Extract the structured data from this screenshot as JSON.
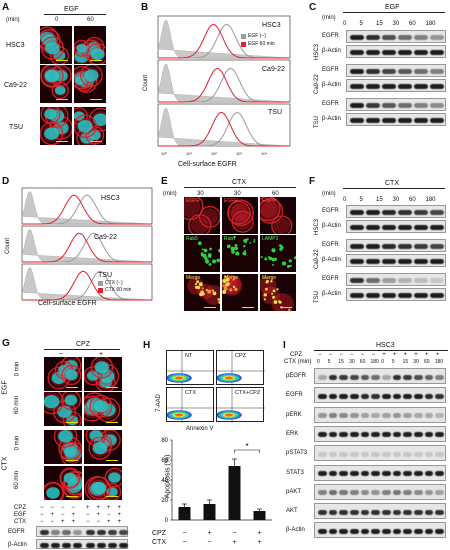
{
  "panel_A": {
    "letter": "A",
    "title": "EGF",
    "unit": "(min)",
    "times": [
      "0",
      "60"
    ],
    "rows": [
      "HSC3",
      "Ca9-22",
      "TSU"
    ]
  },
  "panel_B": {
    "letter": "B",
    "ylabel": "Count",
    "xlabel": "Cell-surface EGFR",
    "rows": [
      "HSC3",
      "Ca9-22",
      "TSU"
    ],
    "legend": [
      "EGF (−)",
      "EGF 60 min"
    ],
    "ticks": [
      "10⁰",
      "10¹",
      "10²",
      "10³",
      "10⁴"
    ]
  },
  "panel_C": {
    "letter": "C",
    "title": "EGF",
    "unit": "(min)",
    "times": [
      "0",
      "5",
      "15",
      "30",
      "60",
      "180"
    ],
    "groups": [
      "HSC3",
      "Ca9-22",
      "TSU"
    ],
    "bands": [
      "EGFR",
      "β-Actin"
    ]
  },
  "panel_D": {
    "letter": "D",
    "ylabel": "Count",
    "xlabel": "Cell-surface EGFR",
    "rows": [
      "HSC3",
      "Ca9-22",
      "TSU"
    ],
    "legend": [
      "CTX (−)",
      "CTX 60 min"
    ]
  },
  "panel_E": {
    "letter": "E",
    "title": "CTX",
    "unit": "(min)",
    "times": [
      "30",
      "30",
      "60"
    ],
    "row1": [
      "EGFR",
      "EGFR",
      "EGFR"
    ],
    "row2": [
      "Rab5",
      "Rab7",
      "LAMP1"
    ],
    "row3": [
      "Merge",
      "Merge",
      "Merge"
    ]
  },
  "panel_F": {
    "letter": "F",
    "title": "CTX",
    "unit": "(min)",
    "times": [
      "0",
      "5",
      "15",
      "30",
      "60",
      "180"
    ],
    "groups": [
      "HSC3",
      "Ca9-22",
      "TSU"
    ],
    "bands": [
      "EGFR",
      "β-Actin"
    ]
  },
  "panel_G": {
    "letter": "G",
    "title": "CPZ",
    "cols": [
      "−",
      "+"
    ],
    "groups": [
      "EGF",
      "CTX"
    ],
    "times": [
      "0 min",
      "60 min"
    ],
    "table_rows": [
      "CPZ",
      "EGF",
      "CTX"
    ],
    "table_values": [
      [
        "−",
        "−",
        "−",
        "−",
        "+",
        "+",
        "+",
        "+"
      ],
      [
        "−",
        "+",
        "−",
        "+",
        "−",
        "+",
        "−",
        "+"
      ],
      [
        "−",
        "−",
        "+",
        "+",
        "−",
        "−",
        "+",
        "+"
      ]
    ],
    "blots": [
      "EGFR",
      "β-Actin"
    ]
  },
  "panel_H": {
    "letter": "H",
    "facs_labels": [
      "NT",
      "CPZ",
      "CTX",
      "CTX+CPZ"
    ],
    "facs_ylabel": "7-AAD",
    "facs_xlabel": "Annexin V",
    "ylabel": "Apoptosis (%)",
    "sig": "*",
    "conditions": [
      "CPZ",
      "CTX"
    ],
    "signs_cpz": [
      "−",
      "+",
      "−",
      "+"
    ],
    "signs_ctx": [
      "−",
      "−",
      "+",
      "+"
    ]
  },
  "panel_I": {
    "letter": "I",
    "title": "HSC3",
    "cpz_label": "CPZ",
    "ctx_label": "CTX (min)",
    "cpz_signs": [
      "−",
      "−",
      "−",
      "−",
      "−",
      "−",
      "+",
      "+",
      "+",
      "+",
      "+",
      "+"
    ],
    "ctx_times": [
      "0",
      "5",
      "15",
      "30",
      "60",
      "180",
      "0",
      "5",
      "15",
      "30",
      "60",
      "180"
    ],
    "bands": [
      "pEGFR",
      "EGFR",
      "pERK",
      "ERK",
      "pSTAT3",
      "STAT3",
      "pAKT",
      "AKT",
      "β-Actin"
    ]
  },
  "chart_data": {
    "type": "bar",
    "categories": [
      "NT",
      "CPZ",
      "CTX",
      "CTX+CPZ"
    ],
    "values": [
      13,
      16,
      54,
      9
    ],
    "errors": [
      3,
      4,
      7,
      2
    ],
    "ylabel": "Apoptosis (%)",
    "ylim": [
      0,
      80
    ],
    "yticks": [
      "0",
      "20",
      "40",
      "60",
      "80"
    ],
    "significance": "*"
  },
  "colors": {
    "nucleus": "#22c7c7",
    "egfr": "#e0202a",
    "marker": "#29d63a",
    "hist_control": "#9a9a9a",
    "hist_treated": "#e0202a"
  }
}
